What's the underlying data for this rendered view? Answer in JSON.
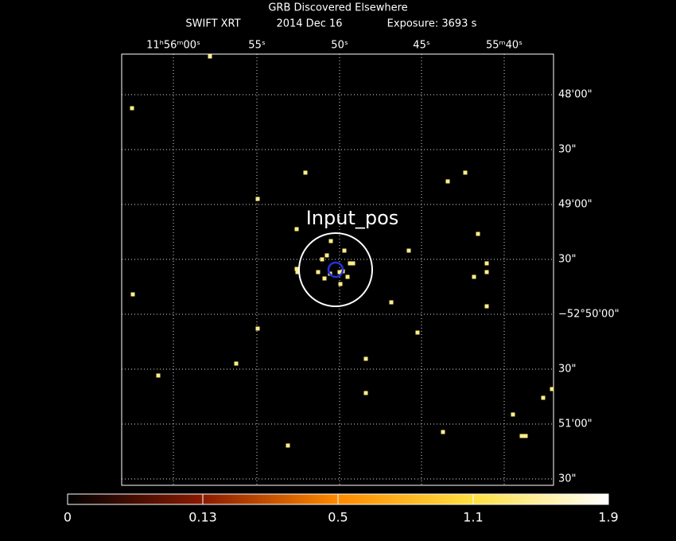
{
  "header": {
    "title": "GRB Discovered Elsewhere",
    "instrument": "SWIFT XRT",
    "date": "2014 Dec 16",
    "exposure": "Exposure: 3693 s"
  },
  "top_axis": {
    "labels": [
      "11ʰ56ᵐ00ˢ",
      "55ˢ",
      "50ˢ",
      "45ˢ",
      "55ᵐ40ˢ"
    ]
  },
  "right_axis": {
    "labels": [
      "48'00\"",
      "30\"",
      "49'00\"",
      "30\"",
      "−52°50'00\"",
      "30\"",
      "51'00\"",
      "30\""
    ]
  },
  "annotation": "Input_pos",
  "colorbar": {
    "labels": [
      "0",
      "0.13",
      "0.5",
      "1.1",
      "1.9"
    ]
  }
}
